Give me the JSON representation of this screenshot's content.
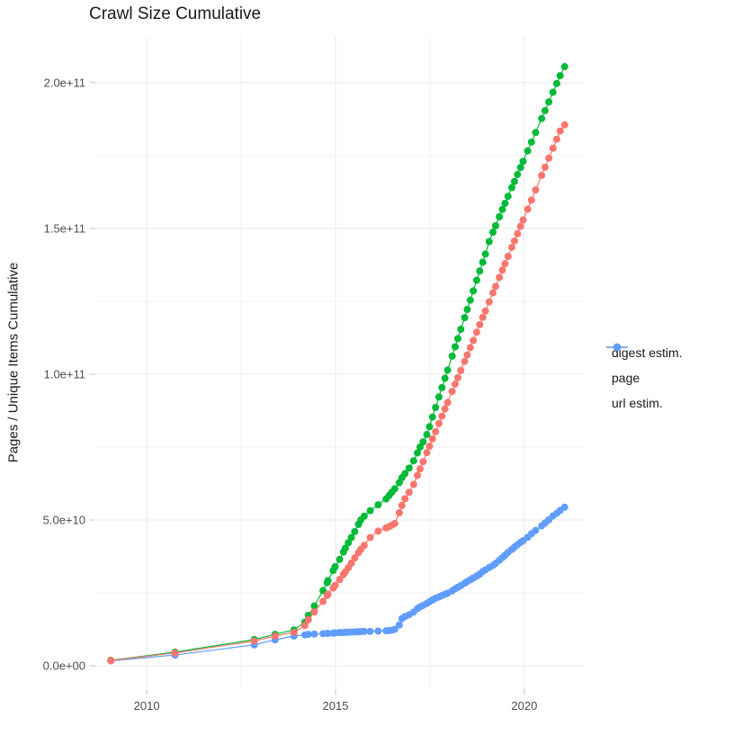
{
  "page": {
    "title": "Crawl Size Cumulative"
  },
  "chart_data": {
    "type": "line",
    "markers": true,
    "title": "Crawl Size Cumulative",
    "xlabel": "",
    "ylabel": "Pages / Unique Items Cumulative",
    "value_unit": "point values given in billions (1e9) of pages / unique items",
    "x_domain": [
      2008.64,
      2021.6
    ],
    "y_domain": [
      -8,
      216
    ],
    "x_ticks": [
      {
        "value": 2010,
        "label": "2010"
      },
      {
        "value": 2015,
        "label": "2015"
      },
      {
        "value": 2020,
        "label": "2020"
      }
    ],
    "x_minor": [
      2012.5,
      2017.5
    ],
    "y_ticks": [
      {
        "value": 0,
        "label": "0.0e+00"
      },
      {
        "value": 50,
        "label": "5.0e+10"
      },
      {
        "value": 100,
        "label": "1.0e+11"
      },
      {
        "value": 150,
        "label": "1.5e+11"
      },
      {
        "value": 200,
        "label": "2.0e+11"
      }
    ],
    "y_minor": [
      25,
      75,
      125,
      175
    ],
    "grid": true,
    "legend_position": "right",
    "draw_order": [
      2,
      1,
      0
    ],
    "series": [
      {
        "name": "digest estim.",
        "color": "#F8766D",
        "points": [
          [
            2009.05,
            1.8
          ],
          [
            2010.75,
            4.4
          ],
          [
            2012.85,
            8.5
          ],
          [
            2013.4,
            10.2
          ],
          [
            2013.9,
            11.5
          ],
          [
            2014.19,
            13.8
          ],
          [
            2014.28,
            15.8
          ],
          [
            2014.44,
            18.5
          ],
          [
            2014.67,
            22.1
          ],
          [
            2014.78,
            24.1
          ],
          [
            2014.8,
            24.6
          ],
          [
            2014.94,
            26.7
          ],
          [
            2014.99,
            27.6
          ],
          [
            2015.11,
            29.6
          ],
          [
            2015.21,
            31.3
          ],
          [
            2015.26,
            32.2
          ],
          [
            2015.34,
            33.7
          ],
          [
            2015.42,
            35.2
          ],
          [
            2015.51,
            37.0
          ],
          [
            2015.61,
            38.8
          ],
          [
            2015.67,
            39.9
          ],
          [
            2015.76,
            41.3
          ],
          [
            2015.92,
            44.0
          ],
          [
            2016.13,
            46.2
          ],
          [
            2016.34,
            47.3
          ],
          [
            2016.42,
            47.7
          ],
          [
            2016.49,
            48.2
          ],
          [
            2016.57,
            48.8
          ],
          [
            2016.69,
            52.5
          ],
          [
            2016.76,
            55.0
          ],
          [
            2016.84,
            57.3
          ],
          [
            2016.95,
            59.5
          ],
          [
            2017.07,
            62.2
          ],
          [
            2017.17,
            65.3
          ],
          [
            2017.24,
            67.5
          ],
          [
            2017.32,
            70.0
          ],
          [
            2017.42,
            73.1
          ],
          [
            2017.49,
            75.3
          ],
          [
            2017.57,
            77.8
          ],
          [
            2017.65,
            80.3
          ],
          [
            2017.74,
            83.1
          ],
          [
            2017.82,
            85.6
          ],
          [
            2017.9,
            88.1
          ],
          [
            2017.97,
            90.3
          ],
          [
            2018.09,
            94.1
          ],
          [
            2018.17,
            96.6
          ],
          [
            2018.24,
            98.8
          ],
          [
            2018.32,
            101.3
          ],
          [
            2018.42,
            104.4
          ],
          [
            2018.49,
            106.6
          ],
          [
            2018.57,
            109.1
          ],
          [
            2018.65,
            111.6
          ],
          [
            2018.74,
            114.4
          ],
          [
            2018.82,
            117.0
          ],
          [
            2018.9,
            119.5
          ],
          [
            2018.97,
            121.7
          ],
          [
            2019.07,
            124.8
          ],
          [
            2019.17,
            127.9
          ],
          [
            2019.24,
            130.1
          ],
          [
            2019.34,
            133.2
          ],
          [
            2019.42,
            135.7
          ],
          [
            2019.49,
            137.9
          ],
          [
            2019.57,
            140.4
          ],
          [
            2019.67,
            143.5
          ],
          [
            2019.74,
            145.7
          ],
          [
            2019.82,
            148.2
          ],
          [
            2019.9,
            150.7
          ],
          [
            2019.97,
            152.9
          ],
          [
            2020.09,
            156.6
          ],
          [
            2020.19,
            159.7
          ],
          [
            2020.3,
            163.2
          ],
          [
            2020.46,
            168.2
          ],
          [
            2020.55,
            171.0
          ],
          [
            2020.65,
            174.1
          ],
          [
            2020.76,
            177.5
          ],
          [
            2020.86,
            180.6
          ],
          [
            2020.95,
            183.4
          ],
          [
            2021.07,
            185.5
          ]
        ]
      },
      {
        "name": "page",
        "color": "#00BA38",
        "points": [
          [
            2009.05,
            1.9
          ],
          [
            2010.75,
            4.7
          ],
          [
            2012.85,
            9.0
          ],
          [
            2013.4,
            10.8
          ],
          [
            2013.9,
            12.3
          ],
          [
            2014.19,
            15.0
          ],
          [
            2014.28,
            17.3
          ],
          [
            2014.44,
            20.5
          ],
          [
            2014.67,
            25.8
          ],
          [
            2014.78,
            28.5
          ],
          [
            2014.8,
            29.2
          ],
          [
            2014.94,
            32.7
          ],
          [
            2014.99,
            34.0
          ],
          [
            2015.11,
            36.5
          ],
          [
            2015.21,
            39.0
          ],
          [
            2015.26,
            40.3
          ],
          [
            2015.34,
            42.2
          ],
          [
            2015.42,
            44.0
          ],
          [
            2015.51,
            46.0
          ],
          [
            2015.61,
            48.5
          ],
          [
            2015.67,
            50.0
          ],
          [
            2015.76,
            51.3
          ],
          [
            2015.92,
            53.2
          ],
          [
            2016.13,
            55.2
          ],
          [
            2016.34,
            57.2
          ],
          [
            2016.42,
            58.4
          ],
          [
            2016.49,
            59.5
          ],
          [
            2016.57,
            60.7
          ],
          [
            2016.69,
            62.8
          ],
          [
            2016.76,
            64.5
          ],
          [
            2016.84,
            65.9
          ],
          [
            2016.95,
            67.8
          ],
          [
            2017.07,
            70.3
          ],
          [
            2017.17,
            73.0
          ],
          [
            2017.24,
            75.0
          ],
          [
            2017.32,
            76.8
          ],
          [
            2017.42,
            79.3
          ],
          [
            2017.49,
            82.0
          ],
          [
            2017.57,
            85.3
          ],
          [
            2017.65,
            88.6
          ],
          [
            2017.74,
            92.2
          ],
          [
            2017.82,
            95.4
          ],
          [
            2017.9,
            98.6
          ],
          [
            2017.97,
            101.4
          ],
          [
            2018.09,
            106.2
          ],
          [
            2018.17,
            109.4
          ],
          [
            2018.24,
            112.2
          ],
          [
            2018.32,
            115.4
          ],
          [
            2018.42,
            119.4
          ],
          [
            2018.49,
            122.2
          ],
          [
            2018.57,
            125.4
          ],
          [
            2018.65,
            128.6
          ],
          [
            2018.74,
            132.2
          ],
          [
            2018.82,
            135.4
          ],
          [
            2018.9,
            138.4
          ],
          [
            2018.97,
            141.2
          ],
          [
            2019.07,
            145.5
          ],
          [
            2019.17,
            148.7
          ],
          [
            2019.24,
            150.9
          ],
          [
            2019.34,
            154.0
          ],
          [
            2019.42,
            156.5
          ],
          [
            2019.49,
            158.6
          ],
          [
            2019.57,
            161.0
          ],
          [
            2019.67,
            164.0
          ],
          [
            2019.74,
            166.1
          ],
          [
            2019.82,
            168.5
          ],
          [
            2019.9,
            170.9
          ],
          [
            2019.97,
            173.0
          ],
          [
            2020.09,
            176.6
          ],
          [
            2020.19,
            179.6
          ],
          [
            2020.3,
            182.9
          ],
          [
            2020.46,
            187.7
          ],
          [
            2020.55,
            190.4
          ],
          [
            2020.65,
            193.4
          ],
          [
            2020.76,
            196.7
          ],
          [
            2020.86,
            199.7
          ],
          [
            2020.95,
            202.4
          ],
          [
            2021.07,
            205.5
          ]
        ]
      },
      {
        "name": "url estim.",
        "color": "#619CFF",
        "points": [
          [
            2009.05,
            1.7
          ],
          [
            2010.75,
            3.7
          ],
          [
            2012.85,
            7.2
          ],
          [
            2013.4,
            8.9
          ],
          [
            2013.9,
            10.2
          ],
          [
            2014.19,
            10.6
          ],
          [
            2014.28,
            10.8
          ],
          [
            2014.44,
            10.9
          ],
          [
            2014.67,
            11.0
          ],
          [
            2014.78,
            11.1
          ],
          [
            2014.8,
            11.1
          ],
          [
            2014.94,
            11.2
          ],
          [
            2014.99,
            11.3
          ],
          [
            2015.11,
            11.4
          ],
          [
            2015.21,
            11.4
          ],
          [
            2015.26,
            11.5
          ],
          [
            2015.34,
            11.5
          ],
          [
            2015.42,
            11.6
          ],
          [
            2015.51,
            11.6
          ],
          [
            2015.61,
            11.7
          ],
          [
            2015.67,
            11.7
          ],
          [
            2015.76,
            11.8
          ],
          [
            2015.92,
            11.8
          ],
          [
            2016.13,
            11.9
          ],
          [
            2016.34,
            12.0
          ],
          [
            2016.42,
            12.1
          ],
          [
            2016.49,
            12.2
          ],
          [
            2016.57,
            12.5
          ],
          [
            2016.69,
            14.0
          ],
          [
            2016.76,
            16.2
          ],
          [
            2016.84,
            16.9
          ],
          [
            2016.95,
            17.5
          ],
          [
            2017.07,
            18.4
          ],
          [
            2017.17,
            19.6
          ],
          [
            2017.24,
            20.2
          ],
          [
            2017.32,
            20.7
          ],
          [
            2017.42,
            21.4
          ],
          [
            2017.49,
            22.0
          ],
          [
            2017.57,
            22.6
          ],
          [
            2017.65,
            23.2
          ],
          [
            2017.74,
            23.6
          ],
          [
            2017.82,
            24.1
          ],
          [
            2017.9,
            24.5
          ],
          [
            2017.97,
            24.9
          ],
          [
            2018.09,
            25.7
          ],
          [
            2018.17,
            26.4
          ],
          [
            2018.24,
            26.9
          ],
          [
            2018.32,
            27.5
          ],
          [
            2018.42,
            28.3
          ],
          [
            2018.49,
            28.9
          ],
          [
            2018.57,
            29.5
          ],
          [
            2018.65,
            30.1
          ],
          [
            2018.74,
            30.8
          ],
          [
            2018.82,
            31.4
          ],
          [
            2018.9,
            32.3
          ],
          [
            2018.97,
            32.9
          ],
          [
            2019.07,
            33.7
          ],
          [
            2019.17,
            34.4
          ],
          [
            2019.24,
            35.1
          ],
          [
            2019.34,
            36.2
          ],
          [
            2019.42,
            37.1
          ],
          [
            2019.49,
            37.9
          ],
          [
            2019.57,
            38.9
          ],
          [
            2019.67,
            39.9
          ],
          [
            2019.74,
            40.7
          ],
          [
            2019.82,
            41.5
          ],
          [
            2019.9,
            42.3
          ],
          [
            2019.97,
            42.9
          ],
          [
            2020.09,
            44.1
          ],
          [
            2020.19,
            45.3
          ],
          [
            2020.3,
            46.4
          ],
          [
            2020.46,
            48.0
          ],
          [
            2020.55,
            49.0
          ],
          [
            2020.65,
            50.1
          ],
          [
            2020.76,
            51.4
          ],
          [
            2020.86,
            52.3
          ],
          [
            2020.95,
            53.3
          ],
          [
            2021.07,
            54.4
          ]
        ]
      }
    ]
  }
}
